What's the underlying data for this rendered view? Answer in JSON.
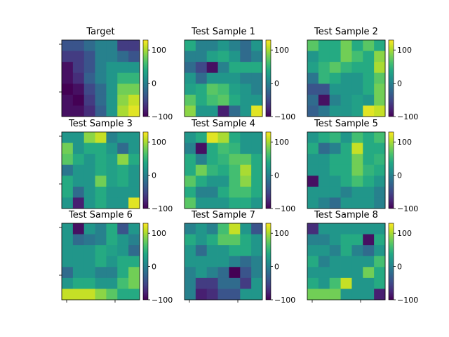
{
  "chart_data": {
    "type": "heatmap",
    "layout": "3x3 grid of heatmaps, each with its own colorbar",
    "colormap": "viridis",
    "color_range": [
      -100,
      130
    ],
    "colorbar_ticks": [
      100,
      0,
      -100
    ],
    "colorbar_tick_labels": [
      "100",
      "0",
      "−100"
    ],
    "grid": false,
    "panels": [
      {
        "title": "Target",
        "values": [
          [
            -40,
            -40,
            -20,
            0,
            0,
            -60,
            -60
          ],
          [
            -60,
            -60,
            -40,
            0,
            0,
            -20,
            -40
          ],
          [
            -90,
            -60,
            -40,
            0,
            20,
            20,
            20
          ],
          [
            -90,
            -70,
            -30,
            0,
            20,
            50,
            50
          ],
          [
            -100,
            -90,
            -50,
            -20,
            20,
            80,
            80
          ],
          [
            -90,
            -100,
            -60,
            -20,
            20,
            90,
            110
          ],
          [
            -90,
            -90,
            -70,
            -30,
            20,
            100,
            120
          ]
        ]
      },
      {
        "title": "Test Sample 1",
        "values": [
          [
            40,
            0,
            0,
            20,
            0,
            -20,
            20
          ],
          [
            0,
            0,
            30,
            40,
            20,
            -20,
            0
          ],
          [
            -20,
            -50,
            -90,
            0,
            40,
            40,
            40
          ],
          [
            20,
            -20,
            20,
            20,
            20,
            0,
            0
          ],
          [
            30,
            40,
            70,
            60,
            30,
            20,
            0
          ],
          [
            70,
            40,
            60,
            70,
            40,
            20,
            20
          ],
          [
            90,
            20,
            20,
            -80,
            -20,
            20,
            120
          ]
        ]
      },
      {
        "title": "Test Sample 2",
        "values": [
          [
            70,
            40,
            40,
            80,
            40,
            70,
            40
          ],
          [
            20,
            40,
            40,
            80,
            60,
            40,
            90
          ],
          [
            30,
            50,
            70,
            50,
            40,
            40,
            100
          ],
          [
            -10,
            50,
            40,
            20,
            20,
            40,
            70
          ],
          [
            -40,
            -40,
            20,
            20,
            20,
            40,
            80
          ],
          [
            -20,
            -90,
            0,
            20,
            30,
            20,
            80
          ],
          [
            -30,
            -10,
            20,
            20,
            30,
            120,
            110
          ]
        ]
      },
      {
        "title": "Test Sample 3",
        "values": [
          [
            20,
            20,
            90,
            110,
            0,
            20,
            20
          ],
          [
            80,
            20,
            40,
            40,
            20,
            -20,
            20
          ],
          [
            70,
            40,
            20,
            40,
            30,
            90,
            40
          ],
          [
            -10,
            20,
            20,
            40,
            30,
            40,
            20
          ],
          [
            40,
            20,
            20,
            80,
            30,
            40,
            20
          ],
          [
            40,
            -20,
            20,
            40,
            20,
            20,
            20
          ],
          [
            20,
            -80,
            20,
            40,
            20,
            20,
            120
          ]
        ]
      },
      {
        "title": "Test Sample 4",
        "values": [
          [
            20,
            40,
            120,
            100,
            40,
            20,
            20
          ],
          [
            0,
            -90,
            40,
            60,
            50,
            20,
            20
          ],
          [
            40,
            0,
            40,
            50,
            70,
            70,
            40
          ],
          [
            40,
            80,
            50,
            40,
            60,
            100,
            40
          ],
          [
            70,
            40,
            20,
            20,
            60,
            90,
            40
          ],
          [
            40,
            0,
            0,
            40,
            60,
            60,
            40
          ],
          [
            70,
            20,
            20,
            20,
            40,
            40,
            20
          ]
        ]
      },
      {
        "title": "Test Sample 5",
        "values": [
          [
            20,
            40,
            50,
            20,
            60,
            40,
            60
          ],
          [
            40,
            -20,
            0,
            40,
            110,
            40,
            40
          ],
          [
            20,
            20,
            40,
            40,
            80,
            40,
            50
          ],
          [
            20,
            20,
            40,
            40,
            80,
            50,
            40
          ],
          [
            -90,
            20,
            20,
            40,
            60,
            40,
            20
          ],
          [
            20,
            20,
            20,
            0,
            20,
            20,
            0
          ],
          [
            20,
            0,
            -20,
            20,
            20,
            20,
            0
          ]
        ]
      },
      {
        "title": "Test Sample 6",
        "values": [
          [
            20,
            -90,
            20,
            0,
            40,
            -40,
            20
          ],
          [
            20,
            -20,
            -10,
            0,
            40,
            20,
            0
          ],
          [
            20,
            20,
            20,
            40,
            30,
            20,
            -20
          ],
          [
            20,
            20,
            20,
            40,
            20,
            40,
            40
          ],
          [
            -20,
            20,
            20,
            0,
            0,
            40,
            80
          ],
          [
            20,
            40,
            40,
            20,
            20,
            60,
            80
          ],
          [
            110,
            110,
            110,
            90,
            70,
            40,
            40
          ]
        ]
      },
      {
        "title": "Test Sample 7",
        "values": [
          [
            0,
            20,
            0,
            60,
            110,
            20,
            -40
          ],
          [
            40,
            20,
            40,
            70,
            70,
            40,
            20
          ],
          [
            20,
            -20,
            20,
            20,
            40,
            40,
            20
          ],
          [
            20,
            20,
            20,
            20,
            0,
            -20,
            0
          ],
          [
            0,
            20,
            0,
            -20,
            -100,
            -40,
            0
          ],
          [
            0,
            -60,
            -60,
            -20,
            -20,
            -60,
            20
          ],
          [
            0,
            -80,
            -70,
            -40,
            -40,
            20,
            20
          ]
        ]
      },
      {
        "title": "Test Sample 8",
        "values": [
          [
            -70,
            20,
            20,
            20,
            20,
            20,
            20
          ],
          [
            0,
            0,
            20,
            40,
            40,
            -90,
            40
          ],
          [
            20,
            20,
            0,
            40,
            0,
            -20,
            20
          ],
          [
            40,
            0,
            20,
            20,
            20,
            20,
            60
          ],
          [
            20,
            20,
            20,
            20,
            20,
            80,
            40
          ],
          [
            40,
            20,
            60,
            110,
            20,
            20,
            40
          ],
          [
            80,
            80,
            80,
            20,
            20,
            20,
            -80
          ]
        ]
      }
    ]
  }
}
